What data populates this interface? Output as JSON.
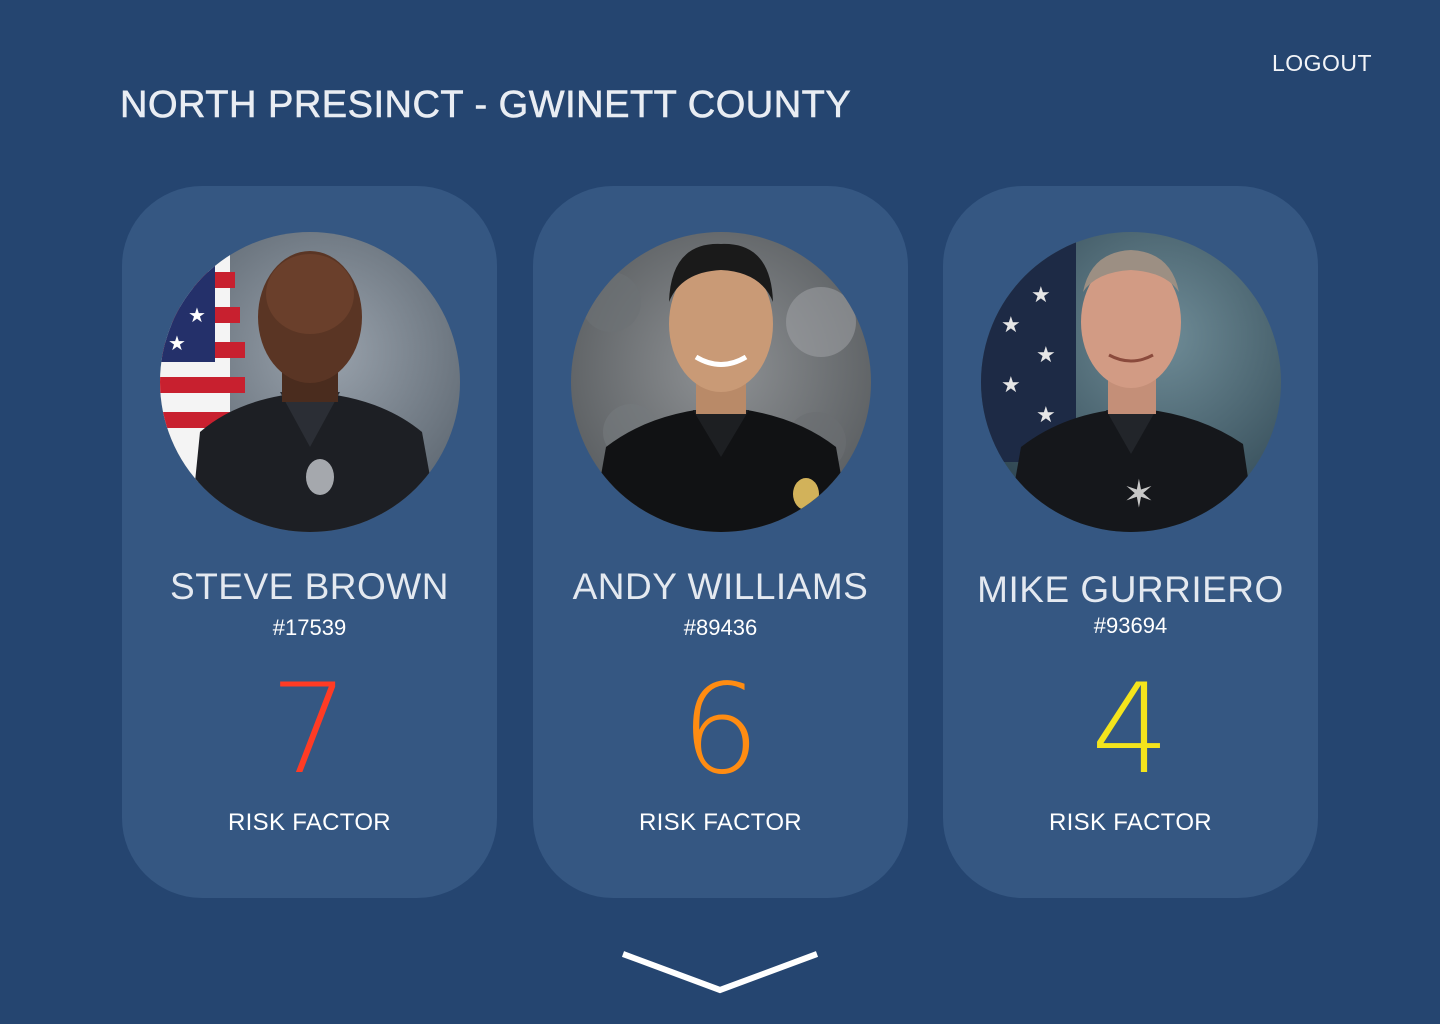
{
  "header": {
    "title": "NORTH PRESINCT - GWINETT COUNTY",
    "logout_label": "LOGOUT"
  },
  "officers": [
    {
      "name": "STEVE BROWN",
      "badge": "#17539",
      "risk_value": "7",
      "risk_label": "RISK FACTOR",
      "risk_color": "#ff3b24"
    },
    {
      "name": "ANDY WILLIAMS",
      "badge": "#89436",
      "risk_value": "6",
      "risk_label": "RISK FACTOR",
      "risk_color": "#ff8c12"
    },
    {
      "name": "MIKE GURRIERO",
      "badge": "#93694",
      "risk_value": "4",
      "risk_label": "RISK FACTOR",
      "risk_color": "#f4e41c"
    }
  ],
  "scroll": {
    "icon": "chevron-down-icon"
  },
  "colors": {
    "background": "#254570",
    "card": "#355782"
  }
}
